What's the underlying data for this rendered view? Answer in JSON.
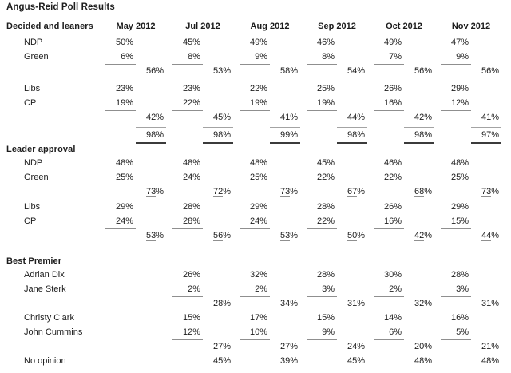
{
  "chart_data": {
    "type": "table",
    "title": "Angus-Reid Poll Results",
    "columns": [
      "May 2012",
      "Jul 2012",
      "Aug 2012",
      "Sep 2012",
      "Oct 2012",
      "Nov 2012"
    ],
    "sections": [
      {
        "label": "Decided and leaners",
        "show_column_headers": true,
        "rows": [
          {
            "type": "value",
            "label": "NDP",
            "values": [
              "50%",
              "45%",
              "49%",
              "46%",
              "49%",
              "47%"
            ]
          },
          {
            "type": "value-rule",
            "label": "Green",
            "values": [
              "6%",
              "8%",
              "9%",
              "8%",
              "7%",
              "9%"
            ]
          },
          {
            "type": "subtotal",
            "label": "",
            "values": [
              "56%",
              "53%",
              "58%",
              "54%",
              "56%",
              "56%"
            ]
          },
          {
            "type": "spacer",
            "h": 4
          },
          {
            "type": "value",
            "label": "Libs",
            "values": [
              "23%",
              "23%",
              "22%",
              "25%",
              "26%",
              "29%"
            ]
          },
          {
            "type": "value-rule",
            "label": "CP",
            "values": [
              "19%",
              "22%",
              "19%",
              "19%",
              "16%",
              "12%"
            ]
          },
          {
            "type": "subtotal",
            "label": "",
            "values": [
              "42%",
              "45%",
              "41%",
              "44%",
              "42%",
              "41%"
            ]
          },
          {
            "type": "spacer",
            "h": 3
          },
          {
            "type": "total",
            "label": "",
            "values": [
              "98%",
              "98%",
              "99%",
              "98%",
              "98%",
              "97%"
            ]
          }
        ]
      },
      {
        "label": "Leader approval",
        "show_column_headers": false,
        "rows": [
          {
            "type": "value",
            "label": "NDP",
            "values": [
              "48%",
              "48%",
              "48%",
              "45%",
              "46%",
              "48%"
            ]
          },
          {
            "type": "value-rule",
            "label": "Green",
            "values": [
              "25%",
              "24%",
              "25%",
              "22%",
              "22%",
              "25%"
            ]
          },
          {
            "type": "subtotal-u",
            "label": "",
            "values": [
              "73%",
              "72%",
              "73%",
              "67%",
              "68%",
              "73%"
            ]
          },
          {
            "type": "spacer",
            "h": 1
          },
          {
            "type": "value",
            "label": "Libs",
            "values": [
              "29%",
              "28%",
              "29%",
              "28%",
              "26%",
              "29%"
            ]
          },
          {
            "type": "value-rule",
            "label": "CP",
            "values": [
              "24%",
              "28%",
              "24%",
              "22%",
              "16%",
              "15%"
            ]
          },
          {
            "type": "subtotal-u",
            "label": "",
            "values": [
              "53%",
              "56%",
              "53%",
              "50%",
              "42%",
              "44%"
            ]
          }
        ]
      },
      {
        "label": "Best Premier",
        "show_column_headers": false,
        "rows": [
          {
            "type": "value",
            "label": "Adrian Dix",
            "values": [
              "",
              "26%",
              "32%",
              "28%",
              "30%",
              "28%"
            ]
          },
          {
            "type": "value-rule",
            "label": "Jane Sterk",
            "values": [
              "",
              "2%",
              "2%",
              "3%",
              "2%",
              "3%"
            ]
          },
          {
            "type": "subtotal",
            "label": "",
            "values": [
              "",
              "28%",
              "34%",
              "31%",
              "32%",
              "31%"
            ]
          },
          {
            "type": "value",
            "label": "Christy Clark",
            "values": [
              "",
              "15%",
              "17%",
              "15%",
              "14%",
              "16%"
            ]
          },
          {
            "type": "value-rule",
            "label": "John Cummins",
            "values": [
              "",
              "12%",
              "10%",
              "9%",
              "6%",
              "5%"
            ]
          },
          {
            "type": "subtotal",
            "label": "",
            "values": [
              "",
              "27%",
              "27%",
              "24%",
              "20%",
              "21%"
            ]
          },
          {
            "type": "subtotal",
            "label": "No opinion",
            "values": [
              "",
              "45%",
              "39%",
              "45%",
              "48%",
              "48%"
            ]
          }
        ]
      }
    ]
  }
}
